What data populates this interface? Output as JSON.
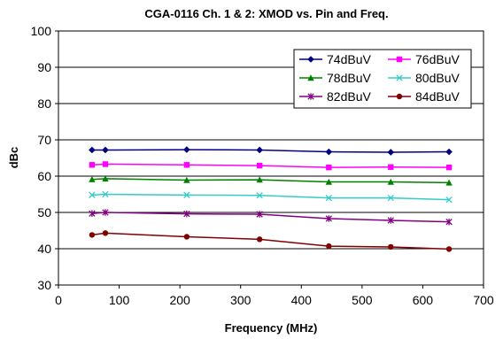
{
  "chart_data": {
    "type": "line",
    "title": "CGA-0116 Ch. 1 & 2: XMOD vs. Pin and Freq.",
    "xlabel": "Frequency (MHz)",
    "ylabel": "dBc",
    "xlim": [
      0,
      700
    ],
    "ylim": [
      30,
      100
    ],
    "xticks": [
      0,
      100,
      200,
      300,
      400,
      500,
      600,
      700
    ],
    "yticks": [
      30,
      40,
      50,
      60,
      70,
      80,
      90,
      100
    ],
    "grid": "horizontal",
    "legend_position": "top-right",
    "x": [
      55.25,
      77.25,
      211.25,
      331.25,
      445.25,
      547.25,
      643.25
    ],
    "series": [
      {
        "name": "74dBuV",
        "color": "#000080",
        "marker": "diamond",
        "values": [
          67.2,
          67.2,
          67.3,
          67.2,
          66.7,
          66.6,
          66.7
        ]
      },
      {
        "name": "76dBuV",
        "color": "#ff00ff",
        "marker": "square",
        "values": [
          63.1,
          63.3,
          63.1,
          62.9,
          62.4,
          62.5,
          62.4
        ]
      },
      {
        "name": "78dBuV",
        "color": "#008000",
        "marker": "triangle",
        "values": [
          59.1,
          59.3,
          58.9,
          59.0,
          58.4,
          58.4,
          58.2
        ]
      },
      {
        "name": "80dBuV",
        "color": "#33cccc",
        "marker": "x",
        "values": [
          54.8,
          55.0,
          54.8,
          54.7,
          54.0,
          54.0,
          53.5
        ]
      },
      {
        "name": "82dBuV",
        "color": "#800080",
        "marker": "star",
        "values": [
          49.7,
          50.0,
          49.6,
          49.5,
          48.3,
          47.8,
          47.4
        ]
      },
      {
        "name": "84dBuV",
        "color": "#800000",
        "marker": "circle",
        "values": [
          43.8,
          44.3,
          43.3,
          42.6,
          40.7,
          40.5,
          39.9
        ]
      }
    ]
  }
}
